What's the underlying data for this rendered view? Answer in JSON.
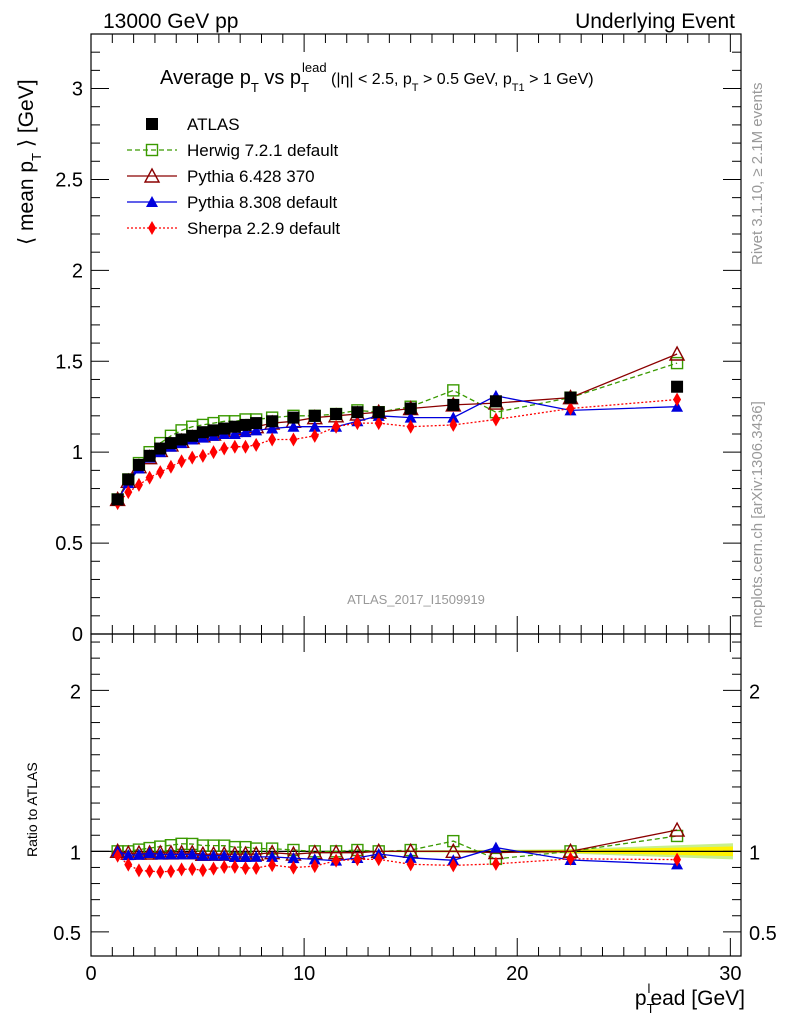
{
  "header": {
    "left": "13000 GeV pp",
    "right": "Underlying Event"
  },
  "title": {
    "main": "Average p",
    "main_sub": "T",
    "vs": " vs p",
    "vs_sub": "T",
    "vs_sup": "lead",
    "cuts_open": " (|η| < 2.5, p",
    "cuts_pt_sub": "T",
    "cuts_mid": " > 0.5 GeV, p",
    "cuts_pt1_sub": "T1",
    "cuts_close": " > 1 GeV)"
  },
  "side_labels": {
    "rivet": "Rivet 3.1.10, ≥ 2.1M events",
    "mcplots": "mcplots.cern.ch [arXiv:1306.3436]"
  },
  "analysis_label": "ATLAS_2017_I1509919",
  "colors": {
    "data": "#000000",
    "herwig": "#3a9a00",
    "pythia6": "#8b0000",
    "pythia8": "#0000dd",
    "sherpa": "#ff0000",
    "band_inner": "#fff200",
    "band_outer": "#c8f08c"
  },
  "chart_data": [
    {
      "type": "scatter",
      "panel": "main",
      "ylabel": "⟨ mean p",
      "ylabel_sub": "T",
      "ylabel_end": " ⟩ [GeV]",
      "xlim": [
        0,
        30.5
      ],
      "ylim": [
        0,
        3.3
      ],
      "yticks": [
        {
          "v": 0,
          "label": "0"
        },
        {
          "v": 0.5,
          "label": "0.5"
        },
        {
          "v": 1,
          "label": "1"
        },
        {
          "v": 1.5,
          "label": "1.5"
        },
        {
          "v": 2,
          "label": "2"
        },
        {
          "v": 2.5,
          "label": "2.5"
        },
        {
          "v": 3,
          "label": "3"
        }
      ],
      "legend_position": "top-left",
      "series": [
        {
          "key": "data",
          "name": "ATLAS",
          "marker": "square-filled",
          "line": "none",
          "x": [
            1.25,
            1.75,
            2.25,
            2.75,
            3.25,
            3.75,
            4.25,
            4.75,
            5.25,
            5.75,
            6.25,
            6.75,
            7.25,
            7.75,
            8.5,
            9.5,
            10.5,
            11.5,
            12.5,
            13.5,
            15,
            17,
            19,
            22.5,
            27.5
          ],
          "y": [
            0.74,
            0.85,
            0.93,
            0.98,
            1.02,
            1.05,
            1.07,
            1.09,
            1.11,
            1.12,
            1.13,
            1.14,
            1.15,
            1.16,
            1.17,
            1.19,
            1.2,
            1.21,
            1.22,
            1.22,
            1.24,
            1.26,
            1.28,
            1.3,
            1.36
          ]
        },
        {
          "key": "herwig",
          "name": "Herwig 7.2.1 default",
          "marker": "square-open",
          "line": "dashed",
          "x": [
            1.25,
            1.75,
            2.25,
            2.75,
            3.25,
            3.75,
            4.25,
            4.75,
            5.25,
            5.75,
            6.25,
            6.75,
            7.25,
            7.75,
            8.5,
            9.5,
            10.5,
            11.5,
            12.5,
            13.5,
            15,
            17,
            19,
            22.5,
            27.5
          ],
          "y": [
            0.74,
            0.85,
            0.94,
            1.0,
            1.05,
            1.09,
            1.12,
            1.14,
            1.15,
            1.16,
            1.17,
            1.17,
            1.18,
            1.18,
            1.19,
            1.2,
            1.2,
            1.21,
            1.23,
            1.22,
            1.25,
            1.34,
            1.22,
            1.3,
            1.49
          ]
        },
        {
          "key": "pythia6",
          "name": "Pythia 6.428 370",
          "marker": "triangle-open",
          "line": "solid",
          "x": [
            1.25,
            1.75,
            2.25,
            2.75,
            3.25,
            3.75,
            4.25,
            4.75,
            5.25,
            5.75,
            6.25,
            6.75,
            7.25,
            7.75,
            8.5,
            9.5,
            10.5,
            11.5,
            12.5,
            13.5,
            15,
            17,
            19,
            22.5,
            27.5
          ],
          "y": [
            0.74,
            0.84,
            0.92,
            0.97,
            1.01,
            1.04,
            1.06,
            1.08,
            1.09,
            1.1,
            1.11,
            1.12,
            1.13,
            1.14,
            1.16,
            1.17,
            1.19,
            1.2,
            1.21,
            1.22,
            1.24,
            1.26,
            1.27,
            1.3,
            1.54
          ]
        },
        {
          "key": "pythia8",
          "name": "Pythia 8.308 default",
          "marker": "triangle-filled",
          "line": "solid",
          "x": [
            1.25,
            1.75,
            2.25,
            2.75,
            3.25,
            3.75,
            4.25,
            4.75,
            5.25,
            5.75,
            6.25,
            6.75,
            7.25,
            7.75,
            8.5,
            9.5,
            10.5,
            11.5,
            12.5,
            13.5,
            15,
            17,
            19,
            22.5,
            27.5
          ],
          "y": [
            0.74,
            0.83,
            0.91,
            0.97,
            1.0,
            1.03,
            1.05,
            1.07,
            1.08,
            1.09,
            1.1,
            1.1,
            1.11,
            1.12,
            1.13,
            1.14,
            1.14,
            1.14,
            1.17,
            1.2,
            1.19,
            1.19,
            1.31,
            1.23,
            1.25
          ]
        },
        {
          "key": "sherpa",
          "name": "Sherpa 2.2.9 default",
          "marker": "diamond-filled",
          "line": "dotted",
          "x": [
            1.25,
            1.75,
            2.25,
            2.75,
            3.25,
            3.75,
            4.25,
            4.75,
            5.25,
            5.75,
            6.25,
            6.75,
            7.25,
            7.75,
            8.5,
            9.5,
            10.5,
            11.5,
            12.5,
            13.5,
            15,
            17,
            19,
            22.5,
            27.5
          ],
          "y": [
            0.72,
            0.78,
            0.82,
            0.86,
            0.89,
            0.92,
            0.95,
            0.97,
            0.98,
            1.0,
            1.02,
            1.03,
            1.03,
            1.04,
            1.07,
            1.07,
            1.09,
            1.14,
            1.16,
            1.16,
            1.14,
            1.15,
            1.18,
            1.24,
            1.29
          ]
        }
      ]
    },
    {
      "type": "scatter",
      "panel": "ratio",
      "ylabel": "Ratio to ATLAS",
      "xlabel_p": "p",
      "xlabel_sub": "T",
      "xlabel_sup": "l",
      "xlabel_end": "ead [GeV]",
      "xlim": [
        0,
        30.5
      ],
      "ylim": [
        0.35,
        2.35
      ],
      "xticks": [
        {
          "v": 0,
          "label": "0"
        },
        {
          "v": 10,
          "label": "10"
        },
        {
          "v": 20,
          "label": "20"
        },
        {
          "v": 30,
          "label": "30"
        }
      ],
      "yticks": [
        {
          "v": 0.5,
          "label": "0.5"
        },
        {
          "v": 1,
          "label": "1"
        },
        {
          "v": 2,
          "label": "2"
        }
      ]
    }
  ]
}
